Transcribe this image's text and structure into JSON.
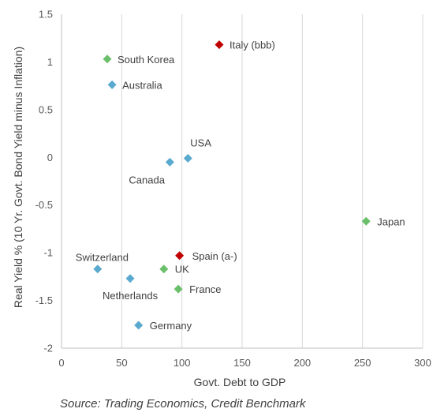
{
  "chart_data": {
    "type": "scatter",
    "xlabel": "Govt. Debt to GDP",
    "ylabel": "Real Yield % (10 Yr. Govt. Bond Yield minus Inflation)",
    "xlim": [
      0,
      300
    ],
    "ylim": [
      -2,
      1.5
    ],
    "x_ticks": [
      "0",
      "50",
      "100",
      "150",
      "200",
      "250",
      "300"
    ],
    "y_ticks": [
      "1.5",
      "1",
      "0.5",
      "0",
      "-0.5",
      "-1",
      "-1.5",
      "-2"
    ],
    "grid": "vertical",
    "colors": {
      "blue": "#5aa9cf",
      "green": "#6bbf6b",
      "red": "#c00000"
    },
    "points": [
      {
        "label": "Italy (bbb)",
        "x": 131,
        "y": 1.18,
        "color": "red"
      },
      {
        "label": "South Korea",
        "x": 38,
        "y": 1.03,
        "color": "green"
      },
      {
        "label": "Australia",
        "x": 42,
        "y": 0.76,
        "color": "blue"
      },
      {
        "label": "USA",
        "x": 105,
        "y": -0.01,
        "color": "blue"
      },
      {
        "label": "Canada",
        "x": 90,
        "y": -0.05,
        "color": "blue"
      },
      {
        "label": "Japan",
        "x": 253,
        "y": -0.67,
        "color": "green"
      },
      {
        "label": "Spain (a-)",
        "x": 98,
        "y": -1.03,
        "color": "red"
      },
      {
        "label": "Switzerland",
        "x": 30,
        "y": -1.17,
        "color": "blue"
      },
      {
        "label": "UK",
        "x": 85,
        "y": -1.17,
        "color": "green"
      },
      {
        "label": "Netherlands",
        "x": 57,
        "y": -1.27,
        "color": "blue"
      },
      {
        "label": "France",
        "x": 97,
        "y": -1.38,
        "color": "green"
      },
      {
        "label": "Germany",
        "x": 64,
        "y": -1.76,
        "color": "blue"
      }
    ]
  },
  "source_note": "Source: Trading Economics, Credit Benchmark"
}
